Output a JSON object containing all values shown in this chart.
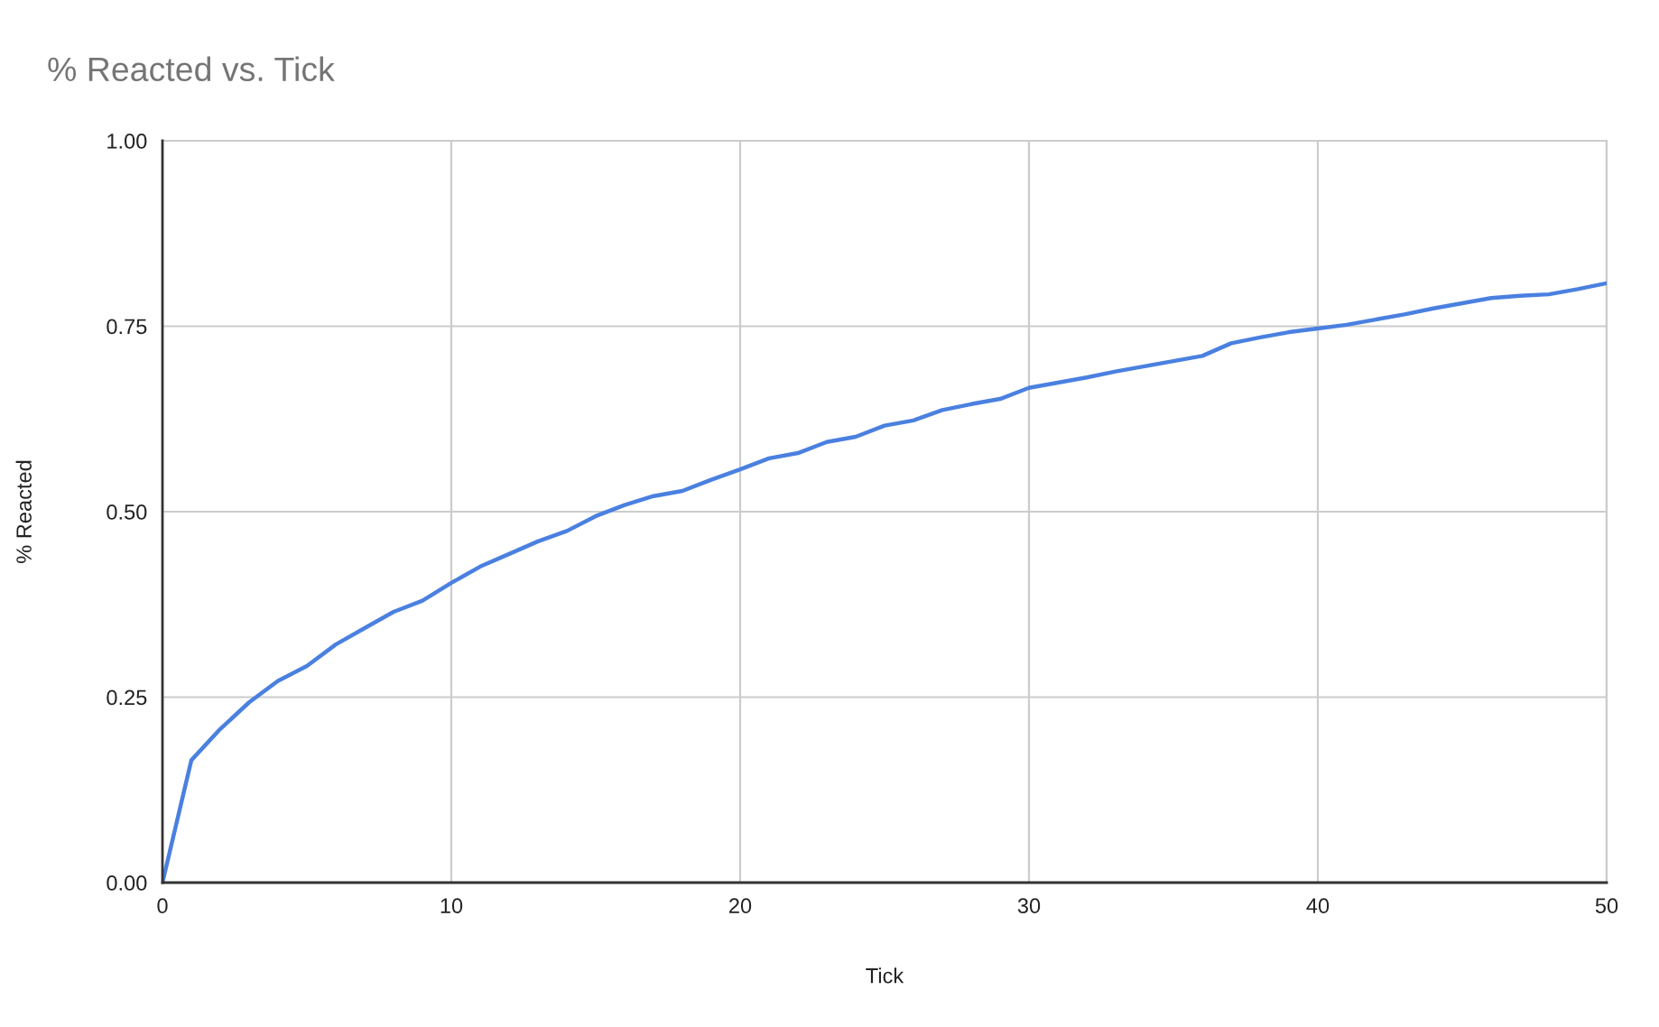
{
  "chart_data": {
    "type": "line",
    "title": "% Reacted vs. Tick",
    "xlabel": "Tick",
    "ylabel": "% Reacted",
    "x": [
      0,
      1,
      2,
      3,
      4,
      5,
      6,
      7,
      8,
      9,
      10,
      11,
      12,
      13,
      14,
      15,
      16,
      17,
      18,
      19,
      20,
      21,
      22,
      23,
      24,
      25,
      26,
      27,
      28,
      29,
      30,
      31,
      32,
      33,
      34,
      35,
      36,
      37,
      38,
      39,
      40,
      41,
      42,
      43,
      44,
      45,
      46,
      47,
      48,
      49,
      50
    ],
    "series": [
      {
        "color": "#4a80e0",
        "values": [
          0,
          0.165,
          0.207,
          0.243,
          0.272,
          0.292,
          0.321,
          0.343,
          0.365,
          0.38,
          0.404,
          0.426,
          0.443,
          0.46,
          0.474,
          0.494,
          0.509,
          0.521,
          0.528,
          0.543,
          0.557,
          0.572,
          0.579,
          0.594,
          0.601,
          0.616,
          0.623,
          0.637,
          0.645,
          0.652,
          0.667,
          0.674,
          0.681,
          0.689,
          0.696,
          0.703,
          0.71,
          0.727,
          0.735,
          0.742,
          0.747,
          0.752,
          0.759,
          0.766,
          0.774,
          0.781,
          0.788,
          0.791,
          0.793,
          0.8,
          0.808
        ]
      }
    ],
    "xlim": [
      0,
      50
    ],
    "xticks": [
      0,
      10,
      20,
      30,
      40,
      50
    ],
    "ylim": [
      0,
      1
    ],
    "yticks": [
      {
        "value": 0,
        "label": "0.00"
      },
      {
        "value": 0.25,
        "label": "0.25"
      },
      {
        "value": 0.5,
        "label": "0.50"
      },
      {
        "value": 0.75,
        "label": "0.75"
      },
      {
        "value": 1,
        "label": "1.00"
      }
    ],
    "grid": true
  }
}
